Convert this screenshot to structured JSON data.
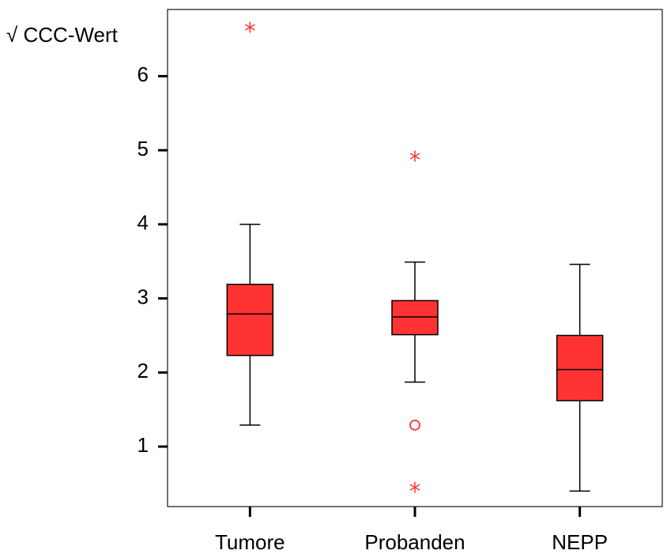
{
  "chart_data": {
    "type": "box",
    "y_label": "√ CCC-Wert",
    "categories": [
      "Tumore",
      "Probanden",
      "NEPP"
    ],
    "color": "#ff3333",
    "boxes": [
      {
        "low": 1.29,
        "q1": 2.23,
        "median": 2.79,
        "q3": 3.19,
        "high": 4.0,
        "outliers": [],
        "extremes": [
          6.66
        ]
      },
      {
        "low": 1.87,
        "q1": 2.51,
        "median": 2.75,
        "q3": 2.97,
        "high": 3.49,
        "outliers": [
          1.29
        ],
        "extremes": [
          4.92,
          0.45
        ]
      },
      {
        "low": 0.4,
        "q1": 1.62,
        "median": 2.04,
        "q3": 2.5,
        "high": 3.46,
        "outliers": [],
        "extremes": []
      }
    ],
    "ylim": [
      0.19,
      6.9
    ],
    "yticks": [
      1,
      2,
      3,
      4,
      5,
      6
    ],
    "grid": false
  }
}
